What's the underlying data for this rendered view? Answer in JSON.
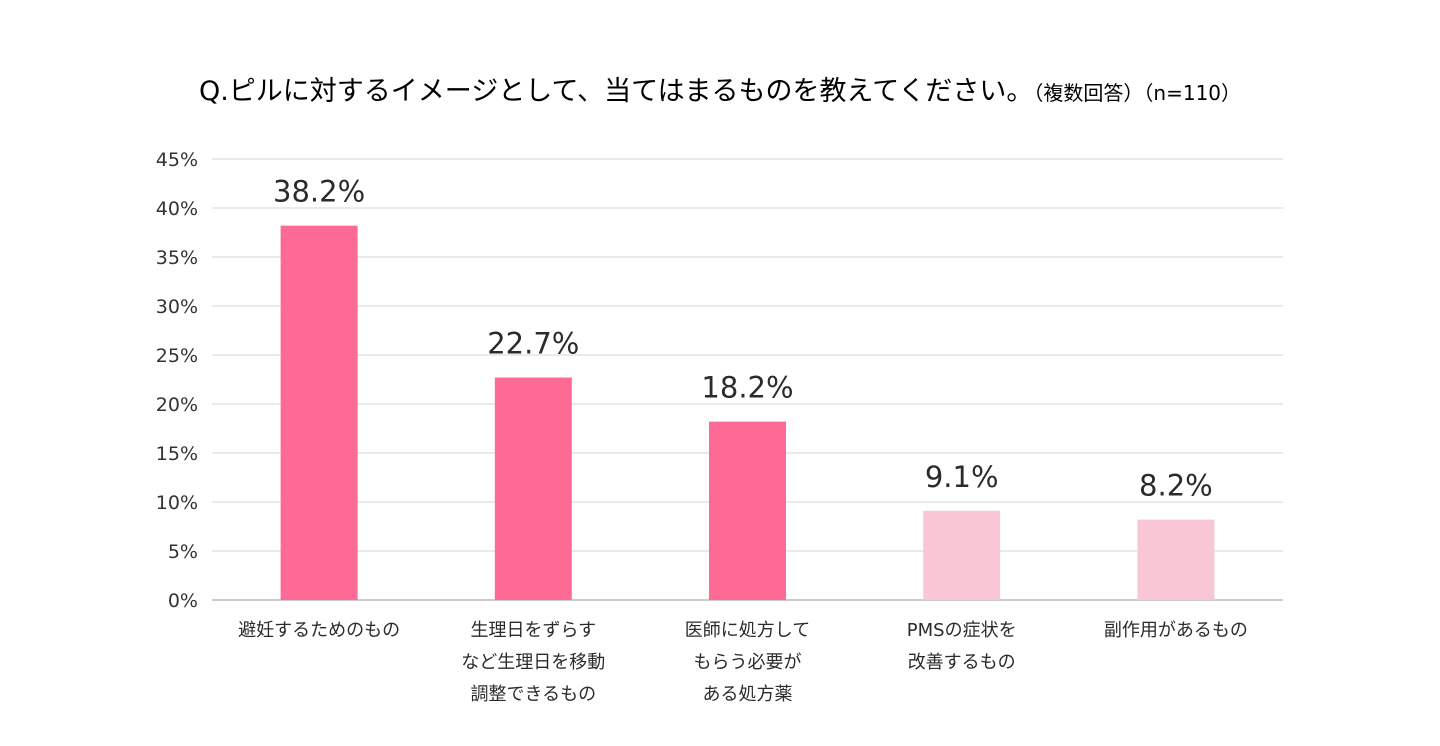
{
  "chart_data": {
    "type": "bar",
    "title": "Q.ピルに対するイメージとして、当てはまるものを教えてください。",
    "subtitle": "（複数回答）（n=110）",
    "xlabel": "",
    "ylabel": "",
    "ylim": [
      0,
      45
    ],
    "y_ticks": [
      "0%",
      "5%",
      "10%",
      "15%",
      "20%",
      "25%",
      "30%",
      "35%",
      "40%",
      "45%"
    ],
    "grid": true,
    "legend": "none",
    "categories": [
      [
        "避妊するためのもの"
      ],
      [
        "生理日をずらす",
        "など生理日を移動",
        "調整できるもの"
      ],
      [
        "医師に処方して",
        "もらう必要が",
        "ある処方薬"
      ],
      [
        "PMSの症状を",
        "改善するもの"
      ],
      [
        "副作用があるもの"
      ]
    ],
    "values": [
      38.2,
      22.7,
      18.2,
      9.1,
      8.2
    ],
    "value_labels": [
      "38.2%",
      "22.7%",
      "18.2%",
      "9.1%",
      "8.2%"
    ],
    "bar_colors": [
      "#fc6a95",
      "#fc6a95",
      "#fc6a95",
      "#f9c6d5",
      "#f9c6d5"
    ],
    "grid_color": "#dddddd",
    "axis_color": "#bbbbbb"
  }
}
